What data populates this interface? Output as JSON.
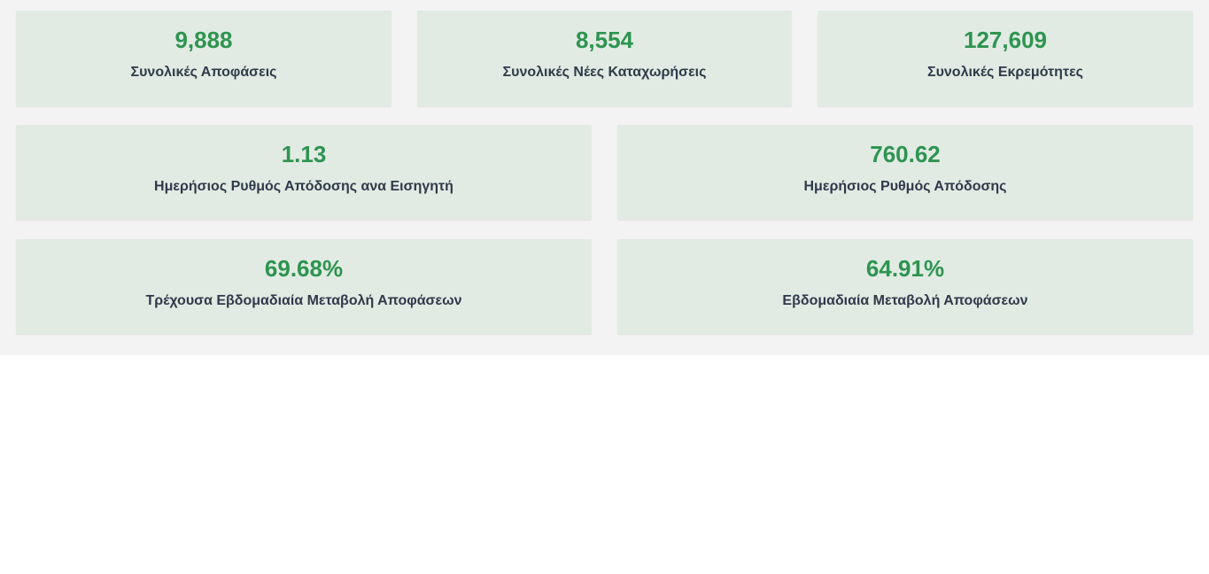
{
  "cards": [
    {
      "value": "9,888",
      "label": "Συνολικές Αποφάσεις"
    },
    {
      "value": "8,554",
      "label": "Συνολικές Νέες Καταχωρήσεις"
    },
    {
      "value": "127,609",
      "label": "Συνολικές Εκρεμότητες"
    },
    {
      "value": "1.13",
      "label": "Ημερήσιος Ρυθμός Απόδοσης ανα Εισηγητή"
    },
    {
      "value": "760.62",
      "label": "Ημερήσιος Ρυθμός Απόδοσης"
    },
    {
      "value": "69.68%",
      "label": "Τρέχουσα Εβδομαδιαία Μεταβολή Αποφάσεων"
    },
    {
      "value": "64.91%",
      "label": "Εβδομαδιαία Μεταβολή Αποφάσεων"
    }
  ],
  "colors": {
    "background": "#f3f3f4",
    "card": "#e1ebe3",
    "value_text": "#2e9450",
    "label_text": "#2f3a4a"
  }
}
